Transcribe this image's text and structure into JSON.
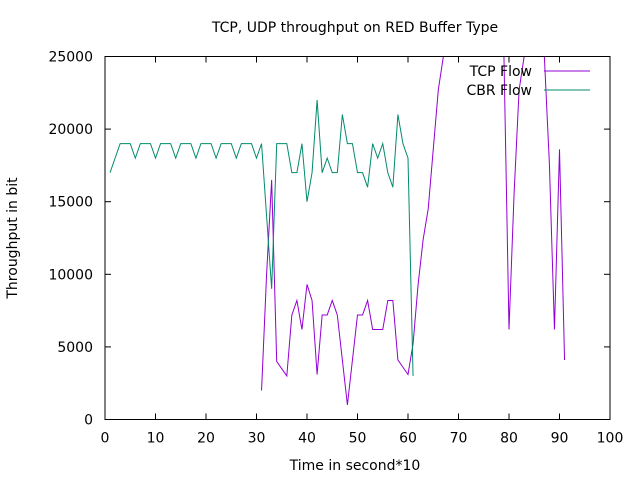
{
  "chart_data": {
    "type": "line",
    "title": "TCP, UDP throughput on RED Buffer Type",
    "xlabel": "Time in second*10",
    "ylabel": "Throughput in bit",
    "xlim": [
      0,
      100
    ],
    "ylim": [
      0,
      25000
    ],
    "x_ticks": [
      "0",
      "10",
      "20",
      "30",
      "40",
      "50",
      "60",
      "70",
      "80",
      "90",
      "100"
    ],
    "y_ticks": [
      "0",
      "5000",
      "10000",
      "15000",
      "20000",
      "25000"
    ],
    "legend_position": "top-right",
    "grid": false,
    "series": [
      {
        "name": "TCP Flow",
        "color": "#9400d3",
        "points": [
          [
            31,
            2000
          ],
          [
            32,
            10000
          ],
          [
            33,
            16500
          ],
          [
            34,
            4000
          ],
          [
            35,
            3500
          ],
          [
            36,
            3000
          ],
          [
            37,
            7200
          ],
          [
            38,
            8200
          ],
          [
            39,
            6200
          ],
          [
            40,
            9300
          ],
          [
            41,
            8200
          ],
          [
            42,
            3100
          ],
          [
            43,
            7200
          ],
          [
            44,
            7200
          ],
          [
            45,
            8200
          ],
          [
            46,
            7200
          ],
          [
            47,
            4100
          ],
          [
            48,
            1000
          ],
          [
            49,
            4100
          ],
          [
            50,
            7200
          ],
          [
            51,
            7200
          ],
          [
            52,
            8200
          ],
          [
            53,
            6200
          ],
          [
            54,
            6200
          ],
          [
            55,
            6200
          ],
          [
            56,
            8200
          ],
          [
            57,
            8200
          ],
          [
            58,
            4100
          ],
          [
            59,
            3600
          ],
          [
            60,
            3100
          ],
          [
            61,
            5200
          ],
          [
            62,
            9300
          ],
          [
            63,
            12400
          ],
          [
            64,
            14500
          ],
          [
            65,
            18600
          ],
          [
            66,
            22700
          ],
          [
            67,
            25000
          ],
          [
            68,
            25000
          ],
          [
            69,
            25000
          ],
          [
            70,
            25000
          ],
          [
            71,
            25000
          ],
          [
            72,
            25000
          ],
          [
            73,
            25000
          ],
          [
            74,
            25000
          ],
          [
            75,
            25000
          ],
          [
            76,
            25000
          ],
          [
            77,
            25000
          ],
          [
            78,
            25000
          ],
          [
            79,
            25000
          ],
          [
            80,
            6200
          ],
          [
            81,
            15500
          ],
          [
            82,
            22700
          ],
          [
            83,
            25000
          ],
          [
            84,
            25000
          ],
          [
            85,
            25000
          ],
          [
            86,
            25000
          ],
          [
            87,
            25000
          ],
          [
            88,
            17600
          ],
          [
            89,
            6200
          ],
          [
            90,
            18600
          ],
          [
            91,
            4100
          ]
        ]
      },
      {
        "name": "CBR Flow",
        "color": "#008b6b",
        "points": [
          [
            1,
            17000
          ],
          [
            2,
            18000
          ],
          [
            3,
            19000
          ],
          [
            4,
            19000
          ],
          [
            5,
            19000
          ],
          [
            6,
            18000
          ],
          [
            7,
            19000
          ],
          [
            8,
            19000
          ],
          [
            9,
            19000
          ],
          [
            10,
            18000
          ],
          [
            11,
            19000
          ],
          [
            12,
            19000
          ],
          [
            13,
            19000
          ],
          [
            14,
            18000
          ],
          [
            15,
            19000
          ],
          [
            16,
            19000
          ],
          [
            17,
            19000
          ],
          [
            18,
            18000
          ],
          [
            19,
            19000
          ],
          [
            20,
            19000
          ],
          [
            21,
            19000
          ],
          [
            22,
            18000
          ],
          [
            23,
            19000
          ],
          [
            24,
            19000
          ],
          [
            25,
            19000
          ],
          [
            26,
            18000
          ],
          [
            27,
            19000
          ],
          [
            28,
            19000
          ],
          [
            29,
            19000
          ],
          [
            30,
            18000
          ],
          [
            31,
            19000
          ],
          [
            32,
            14000
          ],
          [
            33,
            9000
          ],
          [
            34,
            19000
          ],
          [
            35,
            19000
          ],
          [
            36,
            19000
          ],
          [
            37,
            17000
          ],
          [
            38,
            17000
          ],
          [
            39,
            19000
          ],
          [
            40,
            15000
          ],
          [
            41,
            17000
          ],
          [
            42,
            22000
          ],
          [
            43,
            17000
          ],
          [
            44,
            18000
          ],
          [
            45,
            17000
          ],
          [
            46,
            17000
          ],
          [
            47,
            21000
          ],
          [
            48,
            19000
          ],
          [
            49,
            19000
          ],
          [
            50,
            17000
          ],
          [
            51,
            17000
          ],
          [
            52,
            16000
          ],
          [
            53,
            19000
          ],
          [
            54,
            18000
          ],
          [
            55,
            19000
          ],
          [
            56,
            17000
          ],
          [
            57,
            16000
          ],
          [
            58,
            21000
          ],
          [
            59,
            19000
          ],
          [
            60,
            18000
          ],
          [
            61,
            3000
          ]
        ]
      }
    ]
  }
}
